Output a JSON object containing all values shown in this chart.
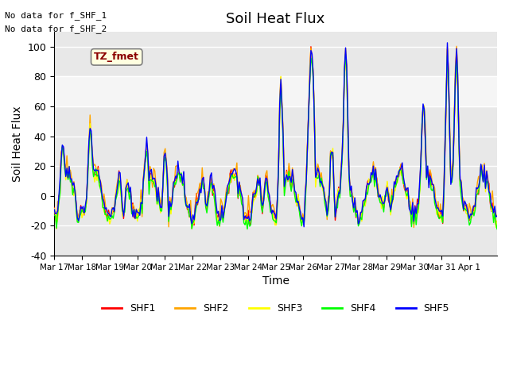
{
  "title": "Soil Heat Flux",
  "ylabel": "Soil Heat Flux",
  "xlabel": "Time",
  "ylim": [
    -40,
    110
  ],
  "yticks": [
    -40,
    -20,
    0,
    20,
    40,
    60,
    80,
    100
  ],
  "note1": "No data for f_SHF_1",
  "note2": "No data for f_SHF_2",
  "tz_label": "TZ_fmet",
  "legend_labels": [
    "SHF1",
    "SHF2",
    "SHF3",
    "SHF4",
    "SHF5"
  ],
  "colors": [
    "red",
    "orange",
    "yellow",
    "lime",
    "blue"
  ],
  "shaded_region": [
    60,
    80
  ],
  "x_tick_labels": [
    "Mar 17",
    "Mar 18",
    "Mar 19",
    "Mar 20",
    "Mar 21",
    "Mar 22",
    "Mar 23",
    "Mar 24",
    "Mar 25",
    "Mar 26",
    "Mar 27",
    "Mar 28",
    "Mar 29",
    "Mar 30",
    "Mar 31",
    "Apr 1"
  ],
  "n_days": 16,
  "plot_bg_color": "#e8e8e8"
}
